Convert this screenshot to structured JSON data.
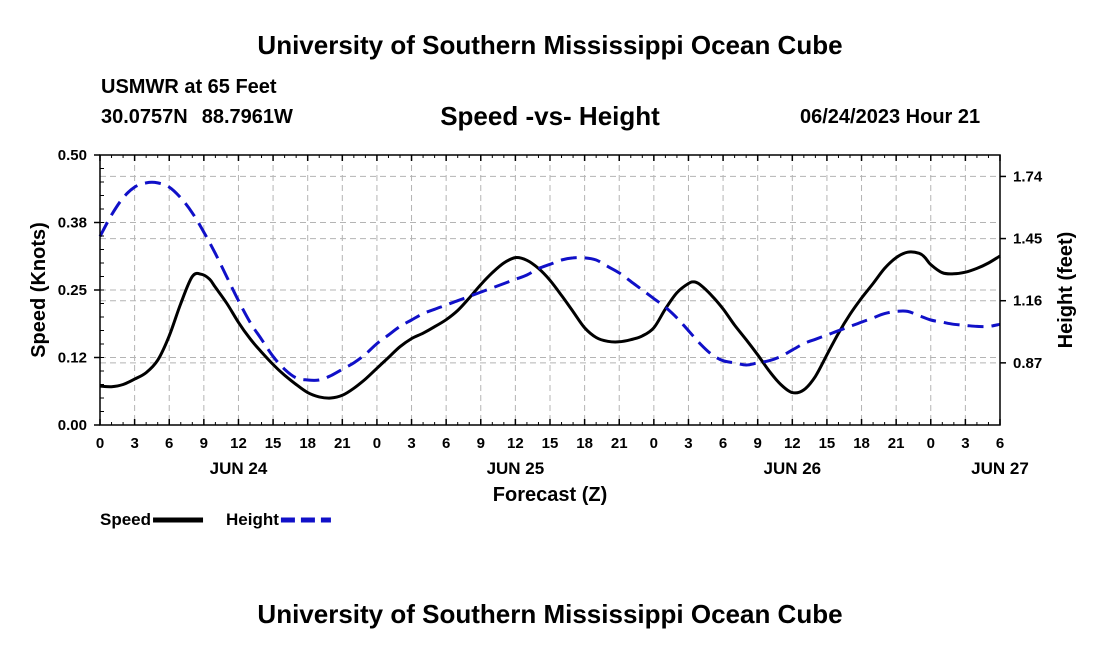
{
  "header": {
    "title": "University of Southern Mississippi Ocean Cube",
    "station": "USMWR at 65 Feet",
    "lat": "30.0757N",
    "lon": "88.7961W",
    "subtitle": "Speed -vs- Height",
    "datetime": "06/24/2023 Hour 21"
  },
  "footer": {
    "title": "University of Southern Mississippi Ocean Cube"
  },
  "colors": {
    "speed": "#000000",
    "height": "#1010c8",
    "grid": "#b4b4b4"
  },
  "chart_data": {
    "type": "line",
    "title": "Speed -vs- Height",
    "xlabel": "Forecast (Z)",
    "ylabel": "Speed (Knots)",
    "ylabel_right": "Height (feet)",
    "x_range_hours": [
      0,
      78
    ],
    "x_tick_step_hours": 3,
    "x_tick_labels": [
      "0",
      "3",
      "6",
      "9",
      "12",
      "15",
      "18",
      "21",
      "0",
      "3",
      "6",
      "9",
      "12",
      "15",
      "18",
      "21",
      "0",
      "3",
      "6",
      "9",
      "12",
      "15",
      "18",
      "21",
      "0",
      "3",
      "6"
    ],
    "date_labels": [
      {
        "hour": 12,
        "label": "JUN 24"
      },
      {
        "hour": 36,
        "label": "JUN 25"
      },
      {
        "hour": 60,
        "label": "JUN 26"
      },
      {
        "hour": 78,
        "label": "JUN 27"
      }
    ],
    "ylim": [
      0,
      0.5
    ],
    "y_ticks": [
      {
        "value": 0.0,
        "label": "0.00"
      },
      {
        "value": 0.125,
        "label": "0.12"
      },
      {
        "value": 0.25,
        "label": "0.25"
      },
      {
        "value": 0.375,
        "label": "0.38"
      },
      {
        "value": 0.5,
        "label": "0.50"
      }
    ],
    "ylim_right": [
      0.58,
      1.84
    ],
    "y_ticks_right": [
      {
        "value": 0.87,
        "label": "0.87"
      },
      {
        "value": 1.16,
        "label": "1.16"
      },
      {
        "value": 1.45,
        "label": "1.45"
      },
      {
        "value": 1.74,
        "label": "1.74"
      }
    ],
    "grid": true,
    "series": [
      {
        "name": "Speed",
        "axis": "left",
        "style": "solid",
        "x": [
          0,
          1,
          2,
          3,
          4,
          5,
          6,
          7,
          8,
          8.8,
          9.5,
          10,
          11,
          12,
          13,
          14,
          15,
          16,
          17,
          18,
          19,
          20,
          21,
          22,
          23,
          24,
          25,
          26,
          27,
          28,
          29,
          30,
          31,
          32,
          33,
          34,
          35,
          36,
          37,
          38,
          39,
          40,
          41,
          42,
          43,
          44,
          45,
          46,
          47,
          48,
          49,
          50,
          51,
          51.5,
          52,
          53,
          54,
          55,
          56,
          57,
          58,
          59,
          60,
          61,
          62,
          63,
          64,
          65,
          66,
          67,
          68,
          69,
          70,
          71,
          71.5,
          72,
          73,
          74,
          75,
          76,
          77,
          78
        ],
        "values": [
          0.072,
          0.071,
          0.075,
          0.085,
          0.097,
          0.12,
          0.165,
          0.225,
          0.275,
          0.279,
          0.27,
          0.255,
          0.225,
          0.19,
          0.16,
          0.135,
          0.112,
          0.092,
          0.075,
          0.06,
          0.052,
          0.05,
          0.055,
          0.068,
          0.085,
          0.105,
          0.125,
          0.145,
          0.16,
          0.17,
          0.182,
          0.195,
          0.212,
          0.235,
          0.26,
          0.282,
          0.3,
          0.31,
          0.305,
          0.29,
          0.268,
          0.24,
          0.21,
          0.18,
          0.162,
          0.155,
          0.154,
          0.158,
          0.165,
          0.18,
          0.215,
          0.245,
          0.262,
          0.265,
          0.26,
          0.24,
          0.215,
          0.185,
          0.158,
          0.13,
          0.1,
          0.075,
          0.06,
          0.065,
          0.09,
          0.13,
          0.17,
          0.205,
          0.235,
          0.262,
          0.29,
          0.31,
          0.32,
          0.318,
          0.31,
          0.297,
          0.282,
          0.28,
          0.283,
          0.29,
          0.3,
          0.313
        ]
      },
      {
        "name": "Height",
        "axis": "right",
        "style": "dashed",
        "x": [
          0,
          1,
          2,
          3,
          4,
          5,
          6,
          7,
          8,
          9,
          10,
          11,
          12,
          13,
          14,
          15,
          16,
          17,
          18,
          19,
          20,
          21,
          22,
          23,
          24,
          25,
          26,
          27,
          28,
          29,
          30,
          31,
          32,
          33,
          34,
          35,
          36,
          37,
          38,
          39,
          40,
          41,
          42,
          43,
          44,
          45,
          46,
          47,
          48,
          49,
          50,
          51,
          52,
          53,
          54,
          55,
          56,
          57,
          58,
          59,
          60,
          61,
          62,
          63,
          64,
          65,
          66,
          67,
          68,
          69,
          70,
          71,
          72,
          73,
          74,
          75,
          76,
          77,
          78
        ],
        "values": [
          1.46,
          1.56,
          1.64,
          1.69,
          1.71,
          1.71,
          1.69,
          1.64,
          1.57,
          1.48,
          1.38,
          1.27,
          1.16,
          1.06,
          0.98,
          0.9,
          0.84,
          0.8,
          0.79,
          0.79,
          0.81,
          0.84,
          0.87,
          0.91,
          0.96,
          1.0,
          1.04,
          1.07,
          1.1,
          1.12,
          1.14,
          1.16,
          1.18,
          1.2,
          1.22,
          1.24,
          1.26,
          1.28,
          1.31,
          1.33,
          1.35,
          1.36,
          1.36,
          1.35,
          1.32,
          1.29,
          1.25,
          1.21,
          1.17,
          1.13,
          1.08,
          1.02,
          0.96,
          0.91,
          0.88,
          0.87,
          0.86,
          0.87,
          0.88,
          0.9,
          0.93,
          0.96,
          0.98,
          1.0,
          1.02,
          1.04,
          1.06,
          1.08,
          1.1,
          1.11,
          1.11,
          1.09,
          1.07,
          1.06,
          1.05,
          1.045,
          1.04,
          1.04,
          1.05
        ]
      }
    ],
    "legend": [
      {
        "label": "Speed",
        "series": "Speed"
      },
      {
        "label": "Height",
        "series": "Height"
      }
    ],
    "legend_position": "bottom-left"
  }
}
